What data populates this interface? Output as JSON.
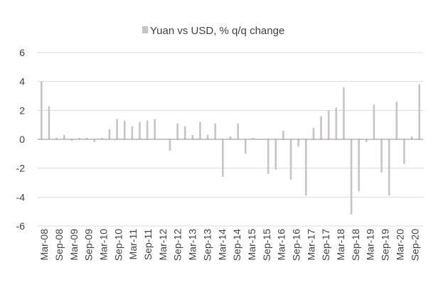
{
  "chart_data": {
    "type": "bar",
    "legend": {
      "label": "Yuan vs USD, % q/q change",
      "position": "top-center"
    },
    "series": [
      {
        "name": "Yuan vs USD, % q/q change",
        "values": [
          4.0,
          2.3,
          0.1,
          0.3,
          -0.1,
          0.1,
          0.1,
          -0.2,
          0.1,
          0.7,
          1.4,
          1.3,
          0.9,
          1.2,
          1.3,
          1.4,
          0.0,
          -0.8,
          1.1,
          0.9,
          0.3,
          1.2,
          0.3,
          1.1,
          -2.6,
          0.2,
          1.1,
          -1.0,
          0.1,
          0.0,
          -2.4,
          -2.1,
          0.6,
          -2.8,
          -0.5,
          -3.9,
          0.8,
          1.6,
          2.0,
          2.2,
          3.6,
          -5.2,
          -3.6,
          -0.2,
          2.4,
          -2.3,
          -3.9,
          2.6,
          -1.7,
          0.2,
          3.8
        ]
      }
    ],
    "x_tick_labels": [
      "Mar-08",
      "Sep-08",
      "Mar-09",
      "Sep-09",
      "Mar-10",
      "Sep-10",
      "Mar-11",
      "Sep-11",
      "Mar-12",
      "Sep-12",
      "Mar-13",
      "Sep-13",
      "Mar-14",
      "Sep-14",
      "Mar-15",
      "Sep-15",
      "Mar-16",
      "Sep-16",
      "Mar-17",
      "Sep-17",
      "Mar-18",
      "Sep-18",
      "Mar-19",
      "Sep-19",
      "Mar-20",
      "Sep-20"
    ],
    "y_ticks": [
      6,
      4,
      2,
      0,
      -2,
      -4,
      -6
    ],
    "ylim": [
      -6,
      6
    ],
    "grid": true,
    "colors": {
      "bar": "#c7c4c5",
      "grid": "#d9d9d9",
      "zero_line": "#8c8c8c",
      "text": "#404040"
    }
  }
}
